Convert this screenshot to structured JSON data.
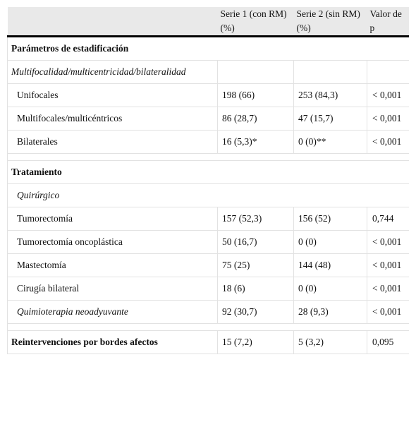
{
  "table": {
    "header": [
      "Serie 1 (con RM) (%)",
      "Serie 2 (sin RM) (%)",
      "Valor de p"
    ],
    "rows": [
      {
        "label": "Parámetros de estadificación",
        "bold": true,
        "span": true
      },
      {
        "label": "Multifocalidad/multicentricidad/bilateralidad",
        "italic": true
      },
      {
        "label": "Unifocales",
        "indent": true,
        "values": [
          "198 (66)",
          "253 (84,3)",
          "< 0,001"
        ]
      },
      {
        "label": "Multifocales/multicéntricos",
        "indent": true,
        "values": [
          "86 (28,7)",
          "47 (15,7)",
          "< 0,001"
        ]
      },
      {
        "label": "Bilaterales",
        "indent": true,
        "values": [
          "16 (5,3)*",
          "0 (0)**",
          "< 0,001"
        ]
      },
      {
        "label": "Tratamiento",
        "bold": true,
        "span": true
      },
      {
        "label": "Quirúrgico",
        "italic": true,
        "span": true,
        "indent": true
      },
      {
        "label": "Tumorectomía",
        "indent": true,
        "values": [
          "157 (52,3)",
          "156 (52)",
          "0,744"
        ]
      },
      {
        "label": "Tumorectomía oncoplástica",
        "indent": true,
        "values": [
          "50 (16,7)",
          "0 (0)",
          "< 0,001"
        ]
      },
      {
        "label": "Mastectomía",
        "indent": true,
        "values": [
          "75 (25)",
          "144 (48)",
          "< 0,001"
        ]
      },
      {
        "label": "Cirugía bilateral",
        "indent": true,
        "values": [
          "18 (6)",
          "0 (0)",
          "< 0,001"
        ]
      },
      {
        "label": "Quimioterapia neoadyuvante",
        "italic": true,
        "indent": true,
        "values": [
          "92 (30,7)",
          "28 (9,3)",
          "< 0,001"
        ]
      },
      {
        "label": "Reintervenciones por bordes afectos",
        "bold": true,
        "values": [
          "15 (7,2)",
          "5 (3,2)",
          "0,095"
        ]
      }
    ]
  }
}
